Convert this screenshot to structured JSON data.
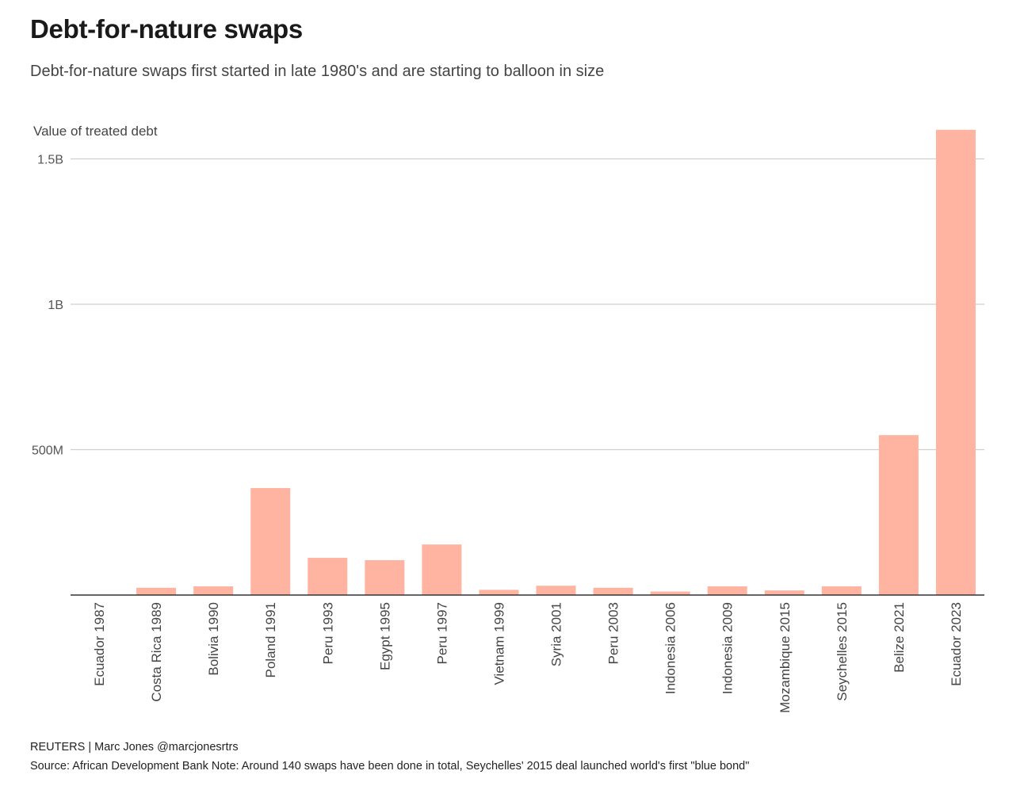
{
  "title": "Debt-for-nature swaps",
  "subtitle": "Debt-for-nature swaps first started in late 1980's and are starting to balloon in size",
  "footer": {
    "credit": "REUTERS | Marc Jones @marcjonesrtrs",
    "source": "Source: African Development Bank Note: Around 140 swaps have been done in total, Seychelles' 2015 deal launched world's first \"blue bond\""
  },
  "chart_data": {
    "type": "bar",
    "ylabel": "Value of treated debt",
    "ylim": [
      0,
      1600000000
    ],
    "yticks": [
      {
        "value": 500000000,
        "label": "500M"
      },
      {
        "value": 1000000000,
        "label": "1B"
      },
      {
        "value": 1500000000,
        "label": "1.5B"
      }
    ],
    "grid": true,
    "bar_color": "#ffb4a2",
    "categories": [
      "Ecuador 1987",
      "Costa Rica 1989",
      "Bolivia 1990",
      "Poland 1991",
      "Peru 1993",
      "Egypt 1995",
      "Peru 1997",
      "Vietnam 1999",
      "Syria 2001",
      "Peru 2003",
      "Indonesia 2006",
      "Indonesia 2009",
      "Mozambique 2015",
      "Seychelles 2015",
      "Belize 2021",
      "Ecuador 2023"
    ],
    "values": [
      1000000,
      25000000,
      30000000,
      368000000,
      128000000,
      120000000,
      174000000,
      18000000,
      32000000,
      25000000,
      12000000,
      30000000,
      16000000,
      30000000,
      550000000,
      1600000000
    ]
  }
}
